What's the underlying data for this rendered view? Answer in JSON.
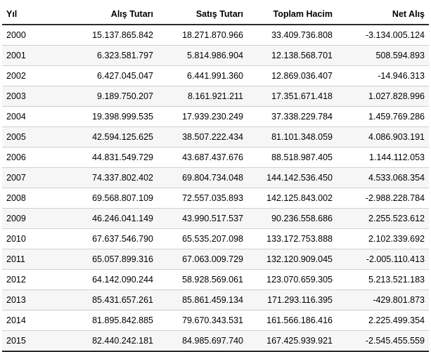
{
  "table": {
    "columns": [
      "Yıl",
      "Alış Tutarı",
      "Satış Tutarı",
      "Toplam Hacim",
      "Net Alış"
    ],
    "rows": [
      [
        "2000",
        "15.137.865.842",
        "18.271.870.966",
        "33.409.736.808",
        "-3.134.005.124"
      ],
      [
        "2001",
        "6.323.581.797",
        "5.814.986.904",
        "12.138.568.701",
        "508.594.893"
      ],
      [
        "2002",
        "6.427.045.047",
        "6.441.991.360",
        "12.869.036.407",
        "-14.946.313"
      ],
      [
        "2003",
        "9.189.750.207",
        "8.161.921.211",
        "17.351.671.418",
        "1.027.828.996"
      ],
      [
        "2004",
        "19.398.999.535",
        "17.939.230.249",
        "37.338.229.784",
        "1.459.769.286"
      ],
      [
        "2005",
        "42.594.125.625",
        "38.507.222.434",
        "81.101.348.059",
        "4.086.903.191"
      ],
      [
        "2006",
        "44.831.549.729",
        "43.687.437.676",
        "88.518.987.405",
        "1.144.112.053"
      ],
      [
        "2007",
        "74.337.802.402",
        "69.804.734.048",
        "144.142.536.450",
        "4.533.068.354"
      ],
      [
        "2008",
        "69.568.807.109",
        "72.557.035.893",
        "142.125.843.002",
        "-2.988.228.784"
      ],
      [
        "2009",
        "46.246.041.149",
        "43.990.517.537",
        "90.236.558.686",
        "2.255.523.612"
      ],
      [
        "2010",
        "67.637.546.790",
        "65.535.207.098",
        "133.172.753.888",
        "2.102.339.692"
      ],
      [
        "2011",
        "65.057.899.316",
        "67.063.009.729",
        "132.120.909.045",
        "-2.005.110.413"
      ],
      [
        "2012",
        "64.142.090.244",
        "58.928.569.061",
        "123.070.659.305",
        "5.213.521.183"
      ],
      [
        "2013",
        "85.431.657.261",
        "85.861.459.134",
        "171.293.116.395",
        "-429.801.873"
      ],
      [
        "2014",
        "81.895.842.885",
        "79.670.343.531",
        "161.566.186.416",
        "2.225.499.354"
      ],
      [
        "2015",
        "82.440.242.181",
        "84.985.697.740",
        "167.425.939.921",
        "-2.545.455.559"
      ]
    ]
  }
}
